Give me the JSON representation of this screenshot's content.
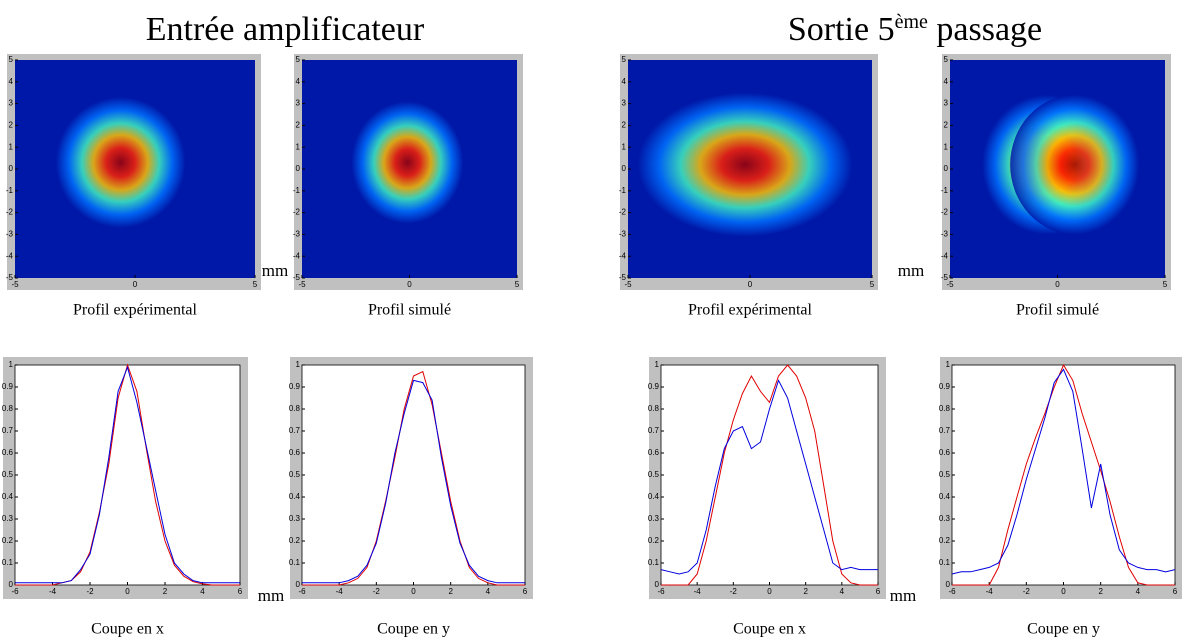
{
  "titles": [
    [
      "Entrée amplificateur"
    ],
    [
      "Sortie 5",
      "ème",
      " passage"
    ]
  ],
  "unit_labels": [
    "mm",
    "mm",
    "mm",
    "mm"
  ],
  "chart_data": [
    {
      "type": "heatmap",
      "caption": "Profil expérimental",
      "xlim": [
        -5,
        5
      ],
      "ylim": [
        -5,
        5
      ],
      "xticks": [
        -5,
        0,
        5
      ],
      "yticks": [
        -5,
        -4,
        -3,
        -2,
        -1,
        0,
        1,
        2,
        3,
        4,
        5
      ]
    },
    {
      "type": "heatmap",
      "caption": "Profil simulé",
      "xlim": [
        -5,
        5
      ],
      "ylim": [
        -5,
        5
      ],
      "xticks": [
        -5,
        0,
        5
      ],
      "yticks": [
        -5,
        -4,
        -3,
        -2,
        -1,
        0,
        1,
        2,
        3,
        4,
        5
      ]
    },
    {
      "type": "heatmap",
      "caption": "Profil expérimental",
      "xlim": [
        -5,
        5
      ],
      "ylim": [
        -5,
        5
      ],
      "xticks": [
        -5,
        0,
        5
      ],
      "yticks": [
        -5,
        -4,
        -3,
        -2,
        -1,
        0,
        1,
        2,
        3,
        4,
        5
      ]
    },
    {
      "type": "heatmap",
      "caption": "Profil simulé",
      "xlim": [
        -5,
        5
      ],
      "ylim": [
        -5,
        5
      ],
      "xticks": [
        -5,
        0,
        5
      ],
      "yticks": [
        -5,
        -4,
        -3,
        -2,
        -1,
        0,
        1,
        2,
        3,
        4,
        5
      ]
    },
    {
      "type": "line",
      "caption": "Coupe en x",
      "xlim": [
        -6,
        6
      ],
      "ylim": [
        0,
        1
      ],
      "xticks": [
        -6,
        -4,
        -2,
        0,
        2,
        4,
        6
      ],
      "yticks": [
        0,
        0.1,
        0.2,
        0.3,
        0.4,
        0.5,
        0.6,
        0.7,
        0.8,
        0.9,
        1
      ],
      "x": [
        -6,
        -5.5,
        -5,
        -4.5,
        -4,
        -3.5,
        -3,
        -2.5,
        -2,
        -1.5,
        -1,
        -0.5,
        0,
        0.5,
        1,
        1.5,
        2,
        2.5,
        3,
        3.5,
        4,
        4.5,
        5,
        5.5,
        6
      ],
      "series": [
        {
          "color": "#e00000",
          "values": [
            0,
            0,
            0,
            0,
            0,
            0.01,
            0.02,
            0.06,
            0.15,
            0.33,
            0.55,
            0.85,
            1,
            0.88,
            0.62,
            0.38,
            0.2,
            0.09,
            0.04,
            0.015,
            0.005,
            0,
            0,
            0,
            0
          ]
        },
        {
          "color": "#0000e0",
          "values": [
            0.01,
            0.01,
            0.01,
            0.01,
            0.01,
            0.01,
            0.02,
            0.07,
            0.14,
            0.32,
            0.58,
            0.88,
            0.99,
            0.83,
            0.63,
            0.43,
            0.23,
            0.1,
            0.05,
            0.02,
            0.01,
            0.01,
            0.01,
            0.01,
            0.01
          ]
        }
      ]
    },
    {
      "type": "line",
      "caption": "Coupe en y",
      "xlim": [
        -6,
        6
      ],
      "ylim": [
        0,
        1
      ],
      "xticks": [
        -6,
        -4,
        -2,
        0,
        2,
        4,
        6
      ],
      "yticks": [
        0,
        0.1,
        0.2,
        0.3,
        0.4,
        0.5,
        0.6,
        0.7,
        0.8,
        0.9,
        1
      ],
      "x": [
        -6,
        -5.5,
        -5,
        -4.5,
        -4,
        -3.5,
        -3,
        -2.5,
        -2,
        -1.5,
        -1,
        -0.5,
        0,
        0.5,
        1,
        1.5,
        2,
        2.5,
        3,
        3.5,
        4,
        4.5,
        5,
        5.5,
        6
      ],
      "series": [
        {
          "color": "#e00000",
          "values": [
            0,
            0,
            0,
            0,
            0,
            0.01,
            0.03,
            0.08,
            0.2,
            0.38,
            0.58,
            0.8,
            0.95,
            0.97,
            0.82,
            0.6,
            0.38,
            0.2,
            0.08,
            0.03,
            0.01,
            0,
            0,
            0,
            0
          ]
        },
        {
          "color": "#0000e0",
          "values": [
            0.01,
            0.01,
            0.01,
            0.01,
            0.01,
            0.02,
            0.04,
            0.09,
            0.19,
            0.37,
            0.6,
            0.78,
            0.93,
            0.92,
            0.84,
            0.58,
            0.36,
            0.19,
            0.09,
            0.04,
            0.02,
            0.01,
            0.01,
            0.01,
            0.01
          ]
        }
      ]
    },
    {
      "type": "line",
      "caption": "Coupe en x",
      "xlim": [
        -6,
        6
      ],
      "ylim": [
        0,
        1
      ],
      "xticks": [
        -6,
        -4,
        -2,
        0,
        2,
        4,
        6
      ],
      "yticks": [
        0,
        0.1,
        0.2,
        0.3,
        0.4,
        0.5,
        0.6,
        0.7,
        0.8,
        0.9,
        1
      ],
      "x": [
        -6,
        -5.5,
        -5,
        -4.5,
        -4,
        -3.5,
        -3,
        -2.5,
        -2,
        -1.5,
        -1,
        -0.5,
        0,
        0.5,
        1,
        1.5,
        2,
        2.5,
        3,
        3.5,
        4,
        4.5,
        5,
        5.5,
        6
      ],
      "series": [
        {
          "color": "#e00000",
          "values": [
            0,
            0,
            0,
            0,
            0.05,
            0.2,
            0.4,
            0.6,
            0.75,
            0.87,
            0.95,
            0.88,
            0.83,
            0.95,
            1,
            0.95,
            0.85,
            0.7,
            0.45,
            0.2,
            0.05,
            0.01,
            0,
            0,
            0
          ]
        },
        {
          "color": "#0000e0",
          "values": [
            0.07,
            0.06,
            0.05,
            0.06,
            0.1,
            0.25,
            0.45,
            0.62,
            0.7,
            0.72,
            0.62,
            0.65,
            0.8,
            0.93,
            0.85,
            0.7,
            0.55,
            0.4,
            0.25,
            0.1,
            0.07,
            0.08,
            0.07,
            0.07,
            0.07
          ]
        }
      ]
    },
    {
      "type": "line",
      "caption": "Coupe en y",
      "xlim": [
        -6,
        6
      ],
      "ylim": [
        0,
        1
      ],
      "xticks": [
        -6,
        -4,
        -2,
        0,
        2,
        4,
        6
      ],
      "yticks": [
        0,
        0.1,
        0.2,
        0.3,
        0.4,
        0.5,
        0.6,
        0.7,
        0.8,
        0.9,
        1
      ],
      "x": [
        -6,
        -5.5,
        -5,
        -4.5,
        -4,
        -3.5,
        -3,
        -2.5,
        -2,
        -1.5,
        -1,
        -0.5,
        0,
        0.5,
        1,
        1.5,
        2,
        2.5,
        3,
        3.5,
        4,
        4.5,
        5,
        5.5,
        6
      ],
      "series": [
        {
          "color": "#e00000",
          "values": [
            0,
            0,
            0,
            0,
            0,
            0.08,
            0.25,
            0.4,
            0.55,
            0.67,
            0.78,
            0.9,
            1,
            0.93,
            0.78,
            0.65,
            0.52,
            0.38,
            0.22,
            0.08,
            0.01,
            0,
            0,
            0,
            0
          ]
        },
        {
          "color": "#0000e0",
          "values": [
            0.05,
            0.06,
            0.06,
            0.07,
            0.08,
            0.1,
            0.18,
            0.32,
            0.48,
            0.62,
            0.76,
            0.92,
            0.98,
            0.88,
            0.62,
            0.35,
            0.55,
            0.32,
            0.16,
            0.1,
            0.08,
            0.07,
            0.07,
            0.06,
            0.07
          ]
        }
      ]
    }
  ]
}
